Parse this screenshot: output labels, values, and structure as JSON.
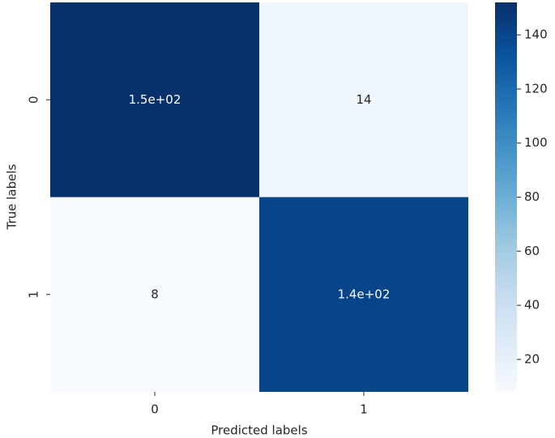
{
  "chart_data": {
    "type": "heatmap",
    "xlabel": "Predicted labels",
    "ylabel": "True labels",
    "x_categories": [
      "0",
      "1"
    ],
    "y_categories": [
      "0",
      "1"
    ],
    "values": [
      [
        152,
        14
      ],
      [
        8,
        141
      ]
    ],
    "value_labels": [
      [
        "1.5e+02",
        "14"
      ],
      [
        "8",
        "1.4e+02"
      ]
    ],
    "colormap": "Blues",
    "clim": [
      8,
      152
    ],
    "cticks": [
      20,
      40,
      60,
      80,
      100,
      120,
      140
    ]
  }
}
